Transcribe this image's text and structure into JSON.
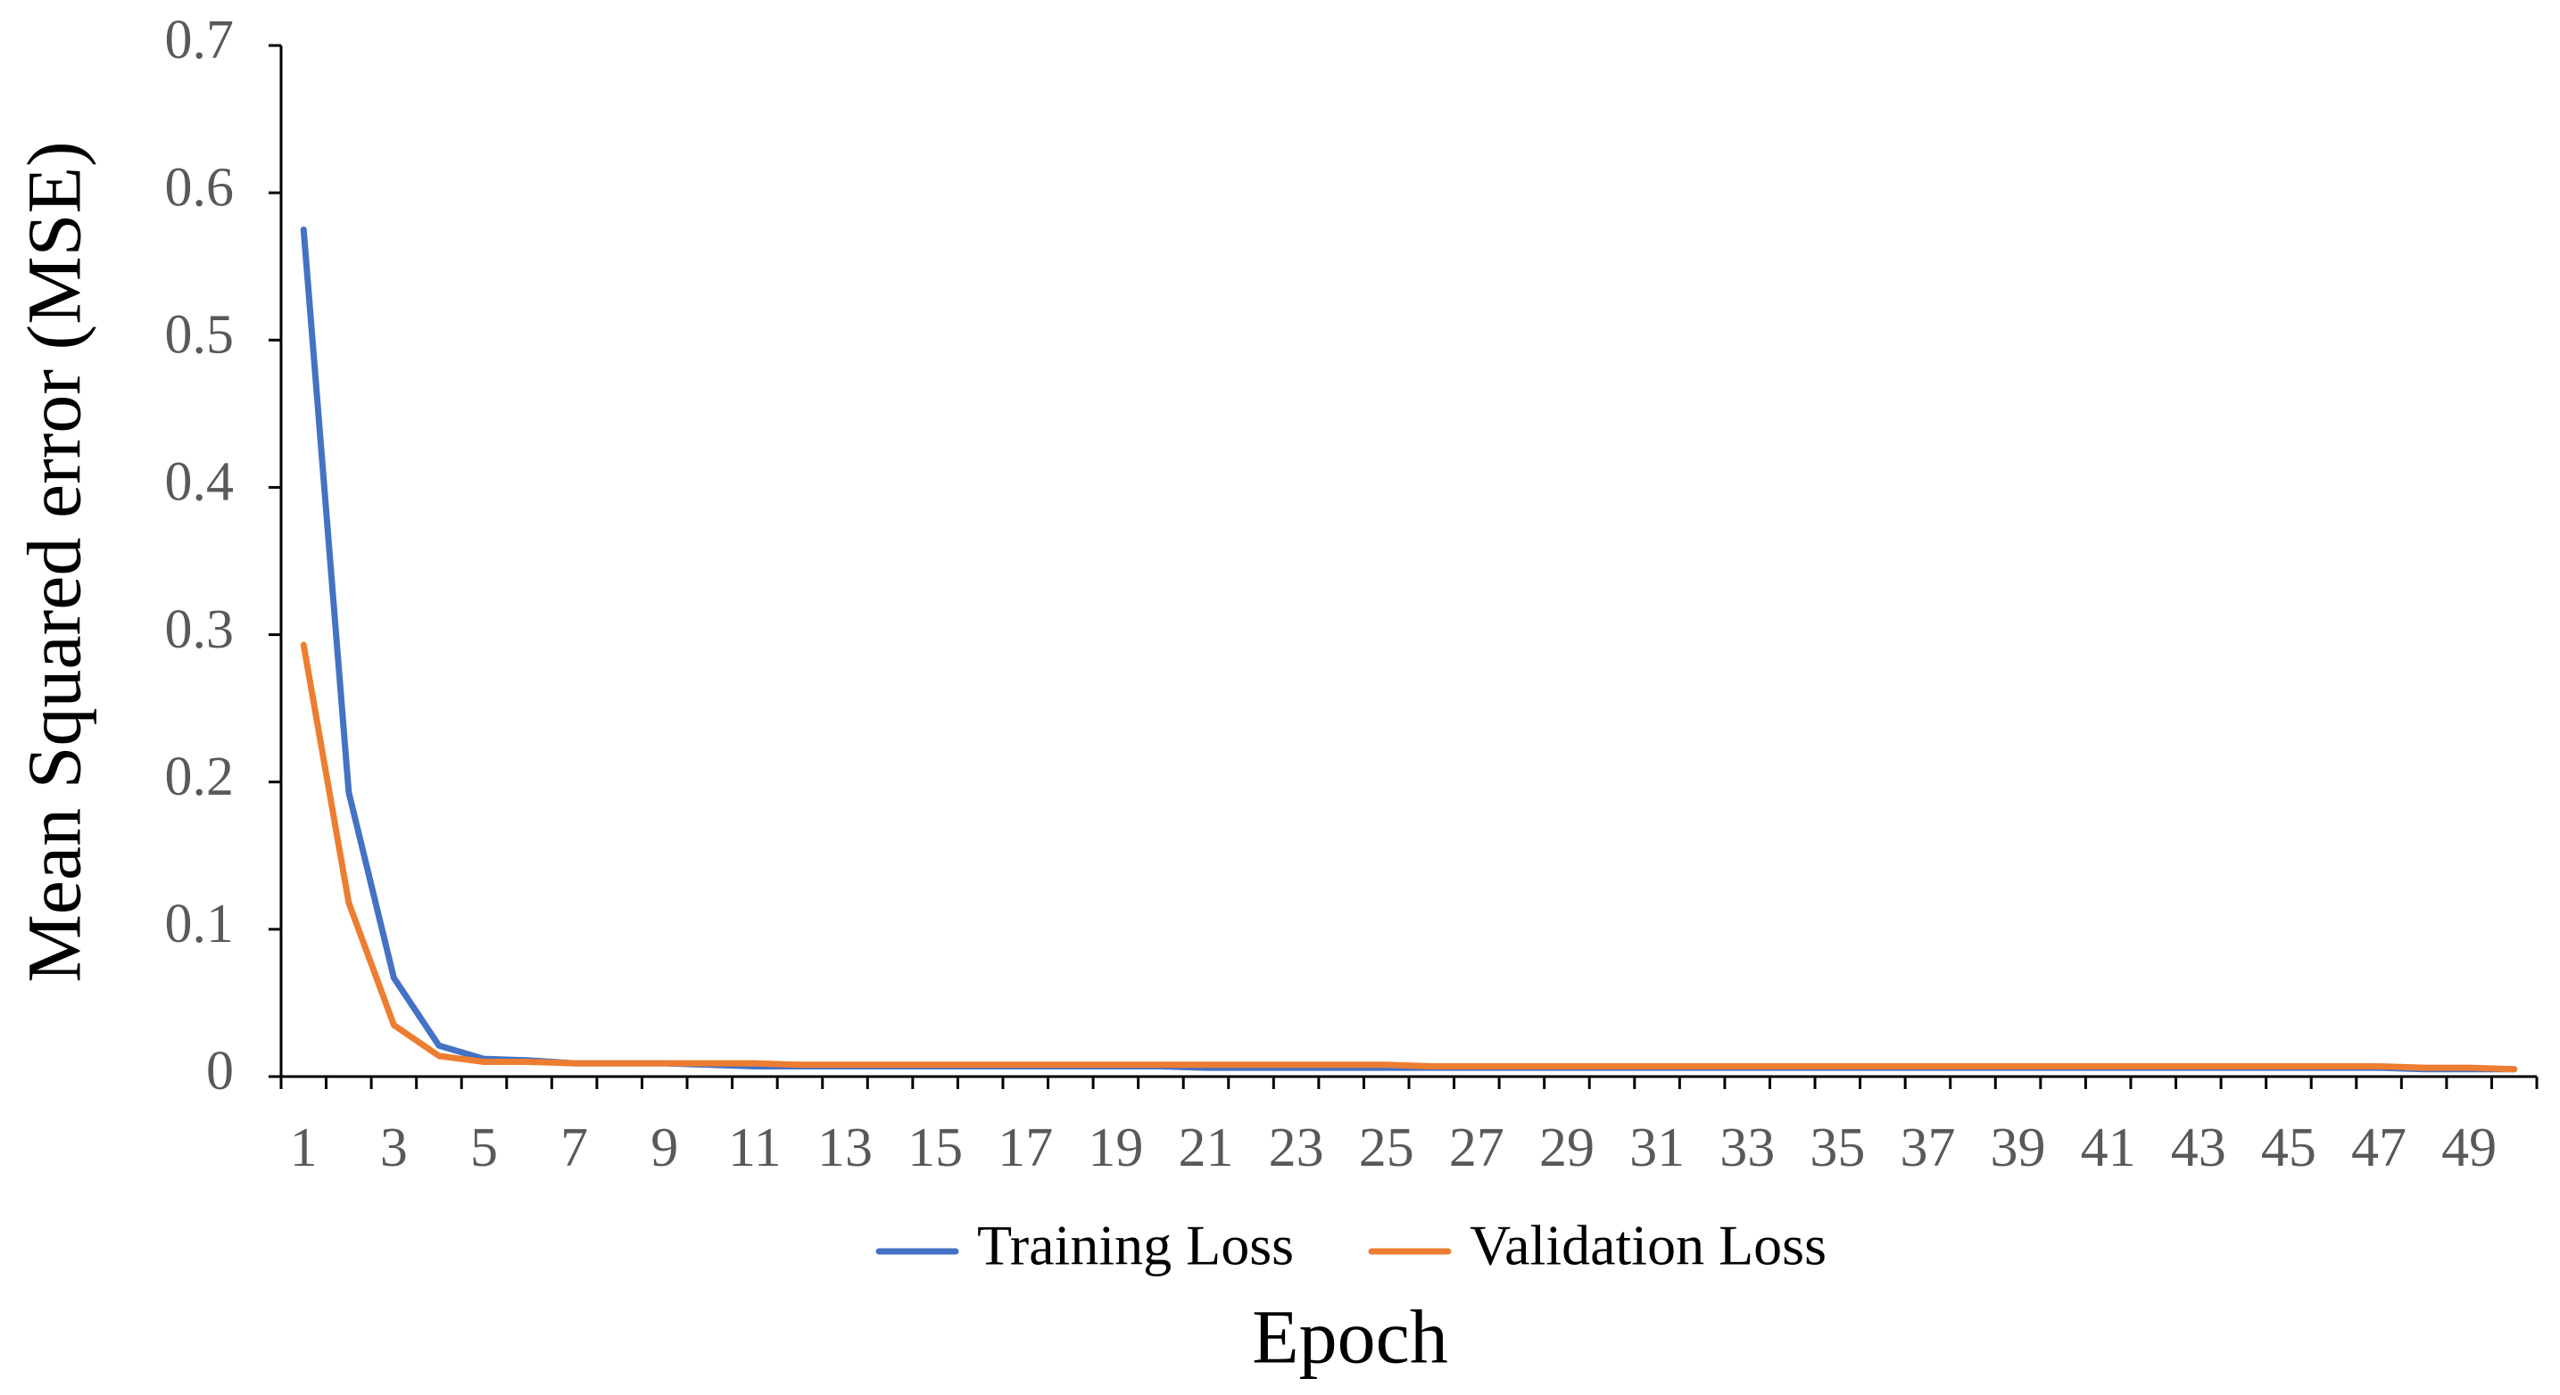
{
  "chart_data": {
    "type": "line",
    "y_label": "Mean Squared error (MSE)",
    "x_label": "Epoch",
    "categories": [
      1,
      null,
      3,
      null,
      5,
      null,
      7,
      null,
      9,
      null,
      11,
      null,
      13,
      null,
      15,
      null,
      17,
      null,
      19,
      null,
      21,
      null,
      23,
      null,
      25,
      null,
      27,
      null,
      29,
      null,
      31,
      null,
      33,
      null,
      35,
      null,
      37,
      null,
      39,
      null,
      41,
      null,
      43,
      null,
      45,
      null,
      47,
      null,
      49,
      null
    ],
    "series": [
      {
        "name": "Training Loss",
        "color": "#4472c4",
        "values": [
          0.575,
          0.193,
          0.067,
          0.021,
          0.012,
          0.011,
          0.009,
          0.009,
          0.009,
          0.008,
          0.007,
          0.007,
          0.007,
          0.007,
          0.007,
          0.007,
          0.007,
          0.007,
          0.007,
          0.007,
          0.006,
          0.006,
          0.006,
          0.006,
          0.006,
          0.006,
          0.006,
          0.006,
          0.006,
          0.006,
          0.006,
          0.006,
          0.006,
          0.006,
          0.006,
          0.006,
          0.006,
          0.006,
          0.006,
          0.006,
          0.006,
          0.006,
          0.006,
          0.006,
          0.006,
          0.006,
          0.006,
          0.005,
          0.005,
          0.005
        ]
      },
      {
        "name": "Validation Loss",
        "color": "#ed7d31",
        "values": [
          0.293,
          0.118,
          0.035,
          0.014,
          0.01,
          0.01,
          0.009,
          0.009,
          0.009,
          0.009,
          0.009,
          0.008,
          0.008,
          0.008,
          0.008,
          0.008,
          0.008,
          0.008,
          0.008,
          0.008,
          0.008,
          0.008,
          0.008,
          0.008,
          0.008,
          0.007,
          0.007,
          0.007,
          0.007,
          0.007,
          0.007,
          0.007,
          0.007,
          0.007,
          0.007,
          0.007,
          0.007,
          0.007,
          0.007,
          0.007,
          0.007,
          0.007,
          0.007,
          0.007,
          0.007,
          0.007,
          0.007,
          0.006,
          0.006,
          0.005
        ]
      }
    ],
    "ylim": [
      0,
      0.7
    ],
    "yticks": [
      0,
      0.1,
      0.2,
      0.3,
      0.4,
      0.5,
      0.6,
      0.7
    ],
    "grid": false,
    "legend": "bottom"
  }
}
